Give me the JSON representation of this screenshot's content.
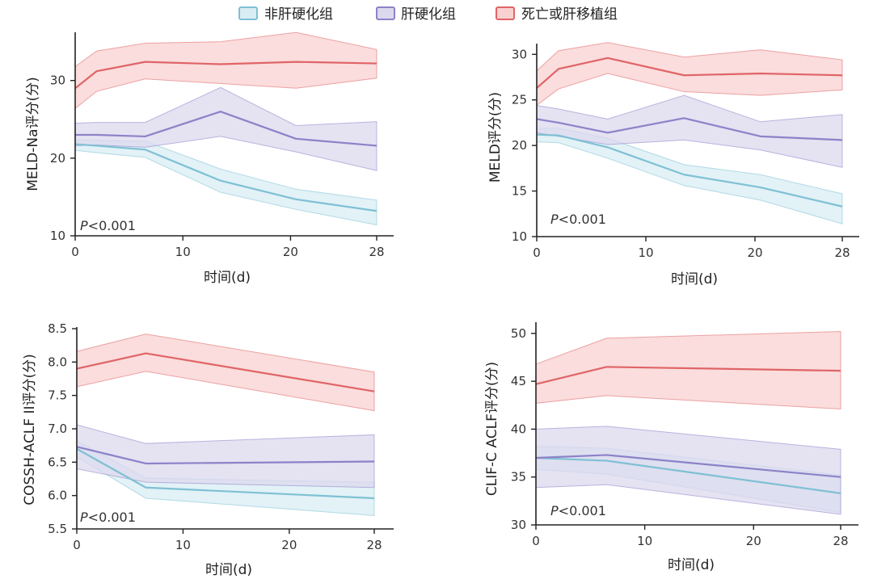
{
  "legend": [
    {
      "label": "非肝硬化组",
      "color": "#7fc0d4",
      "fill": "#d8eef4"
    },
    {
      "label": "肝硬化组",
      "color": "#8c82c8",
      "fill": "#dcd8ee"
    },
    {
      "label": "死亡或肝移植组",
      "color": "#e06468",
      "fill": "#f8d2d0"
    }
  ],
  "chart_data": [
    {
      "type": "line",
      "ylabel": "MELD-Na评分(分)",
      "xlabel": "时间(d)",
      "pvalue_italic": "P",
      "pvalue_rest": "<0.001",
      "xlim": [
        0,
        28
      ],
      "ylim": [
        10,
        36
      ],
      "xticks": [
        0,
        10,
        20,
        28
      ],
      "xtick_labels": [
        "0",
        "10",
        "20",
        "28"
      ],
      "yticks": [
        10,
        20,
        30
      ],
      "ytick_labels": [
        "10",
        "20",
        "30"
      ],
      "series": [
        {
          "name": "非肝硬化组",
          "x": [
            0,
            2,
            6.5,
            13.5,
            20.5,
            28
          ],
          "mean": [
            21.8,
            21.6,
            21.1,
            17.1,
            14.7,
            13.2
          ],
          "lower": [
            21.0,
            20.7,
            20.1,
            15.6,
            13.4,
            11.4
          ],
          "upper": [
            22.4,
            22.3,
            22.2,
            18.6,
            16.0,
            14.6
          ]
        },
        {
          "name": "肝硬化组",
          "x": [
            0,
            2,
            6.5,
            13.5,
            20.5,
            28
          ],
          "mean": [
            23.0,
            23.0,
            22.8,
            26.0,
            22.5,
            21.6
          ],
          "lower": [
            21.6,
            21.7,
            21.4,
            22.8,
            20.8,
            18.4
          ],
          "upper": [
            24.5,
            24.6,
            24.6,
            29.1,
            24.2,
            24.7
          ]
        },
        {
          "name": "死亡或肝移植组",
          "x": [
            0,
            2,
            6.5,
            13.5,
            20.5,
            28
          ],
          "mean": [
            29.0,
            31.2,
            32.4,
            32.1,
            32.4,
            32.2
          ],
          "lower": [
            26.4,
            28.6,
            30.2,
            29.6,
            29.0,
            30.3
          ],
          "upper": [
            31.8,
            33.8,
            34.8,
            35.0,
            36.2,
            34.0
          ]
        }
      ]
    },
    {
      "type": "line",
      "ylabel": "MELD评分(分)",
      "xlabel": "时间(d)",
      "pvalue_italic": "P",
      "pvalue_rest": "<0.001",
      "xlim": [
        0,
        28
      ],
      "ylim": [
        10,
        31
      ],
      "xticks": [
        0,
        10,
        20,
        28
      ],
      "xtick_labels": [
        "0",
        "10",
        "20",
        "28"
      ],
      "yticks": [
        10,
        15,
        20,
        25,
        30
      ],
      "ytick_labels": [
        "10",
        "15",
        "20",
        "25",
        "30"
      ],
      "series": [
        {
          "name": "非肝硬化组",
          "x": [
            0,
            2,
            6.5,
            13.5,
            20.5,
            28
          ],
          "mean": [
            21.2,
            21.1,
            19.8,
            16.8,
            15.4,
            13.3
          ],
          "lower": [
            20.4,
            20.3,
            18.6,
            15.6,
            14.0,
            11.4
          ],
          "upper": [
            21.9,
            21.9,
            20.8,
            17.9,
            16.8,
            14.7
          ]
        },
        {
          "name": "肝硬化组",
          "x": [
            0,
            2,
            6.5,
            13.5,
            20.5,
            28
          ],
          "mean": [
            22.9,
            22.5,
            21.4,
            23.0,
            21.0,
            20.6
          ],
          "lower": [
            21.4,
            21.0,
            20.1,
            20.6,
            19.5,
            17.6
          ],
          "upper": [
            24.4,
            24.0,
            22.9,
            25.5,
            22.6,
            23.4
          ]
        },
        {
          "name": "死亡或肝移植组",
          "x": [
            0,
            2,
            6.5,
            13.5,
            20.5,
            28
          ],
          "mean": [
            26.3,
            28.4,
            29.6,
            27.7,
            27.9,
            27.7
          ],
          "lower": [
            24.4,
            26.2,
            27.9,
            25.9,
            25.5,
            26.1
          ],
          "upper": [
            28.2,
            30.4,
            31.3,
            29.7,
            30.5,
            29.4
          ]
        }
      ]
    },
    {
      "type": "line",
      "ylabel": "COSSH-ACLF II评分(分)",
      "xlabel": "时间(d)",
      "pvalue_italic": "P",
      "pvalue_rest": "<0.001",
      "xlim": [
        0,
        28
      ],
      "ylim": [
        5.5,
        8.5
      ],
      "xticks": [
        0,
        10,
        20,
        28
      ],
      "xtick_labels": [
        "0",
        "10",
        "20",
        "28"
      ],
      "yticks": [
        5.5,
        6.0,
        6.5,
        7.0,
        7.5,
        8.0,
        8.5
      ],
      "ytick_labels": [
        "5.5",
        "6.0",
        "6.5",
        "7.0",
        "7.5",
        "8.0",
        "8.5"
      ],
      "series": [
        {
          "name": "非肝硬化组",
          "x": [
            0,
            6.5,
            28
          ],
          "mean": [
            6.7,
            6.12,
            5.96
          ],
          "lower": [
            6.58,
            5.96,
            5.7
          ],
          "upper": [
            6.82,
            6.26,
            6.2
          ]
        },
        {
          "name": "肝硬化组",
          "x": [
            0,
            6.5,
            28
          ],
          "mean": [
            6.73,
            6.48,
            6.51
          ],
          "lower": [
            6.4,
            6.2,
            6.12
          ],
          "upper": [
            7.06,
            6.78,
            6.91
          ]
        },
        {
          "name": "死亡或肝移植组",
          "x": [
            0,
            6.5,
            28
          ],
          "mean": [
            7.9,
            8.13,
            7.56
          ],
          "lower": [
            7.63,
            7.86,
            7.27
          ],
          "upper": [
            8.16,
            8.42,
            7.85
          ]
        }
      ]
    },
    {
      "type": "line",
      "ylabel": "CLIF-C ACLF评分(分)",
      "xlabel": "时间(d)",
      "pvalue_italic": "P",
      "pvalue_rest": "<0.001",
      "xlim": [
        0,
        28
      ],
      "ylim": [
        30,
        51
      ],
      "xticks": [
        0,
        10,
        20,
        28
      ],
      "xtick_labels": [
        "0",
        "10",
        "20",
        "28"
      ],
      "yticks": [
        30,
        35,
        40,
        45,
        50
      ],
      "ytick_labels": [
        "30",
        "35",
        "40",
        "45",
        "50"
      ],
      "series": [
        {
          "name": "非肝硬化组",
          "x": [
            0,
            6.5,
            28
          ],
          "mean": [
            37.0,
            36.7,
            33.3
          ],
          "lower": [
            35.8,
            35.3,
            31.3
          ],
          "upper": [
            38.2,
            38.0,
            35.2
          ]
        },
        {
          "name": "肝硬化组",
          "x": [
            0,
            6.5,
            28
          ],
          "mean": [
            37.0,
            37.3,
            35.0
          ],
          "lower": [
            33.9,
            34.2,
            31.1
          ],
          "upper": [
            40.0,
            40.3,
            37.9
          ]
        },
        {
          "name": "死亡或肝移植组",
          "x": [
            0,
            6.5,
            28
          ],
          "mean": [
            44.7,
            46.5,
            46.1
          ],
          "lower": [
            42.7,
            43.5,
            42.1
          ],
          "upper": [
            46.8,
            49.5,
            50.2
          ]
        }
      ]
    }
  ]
}
